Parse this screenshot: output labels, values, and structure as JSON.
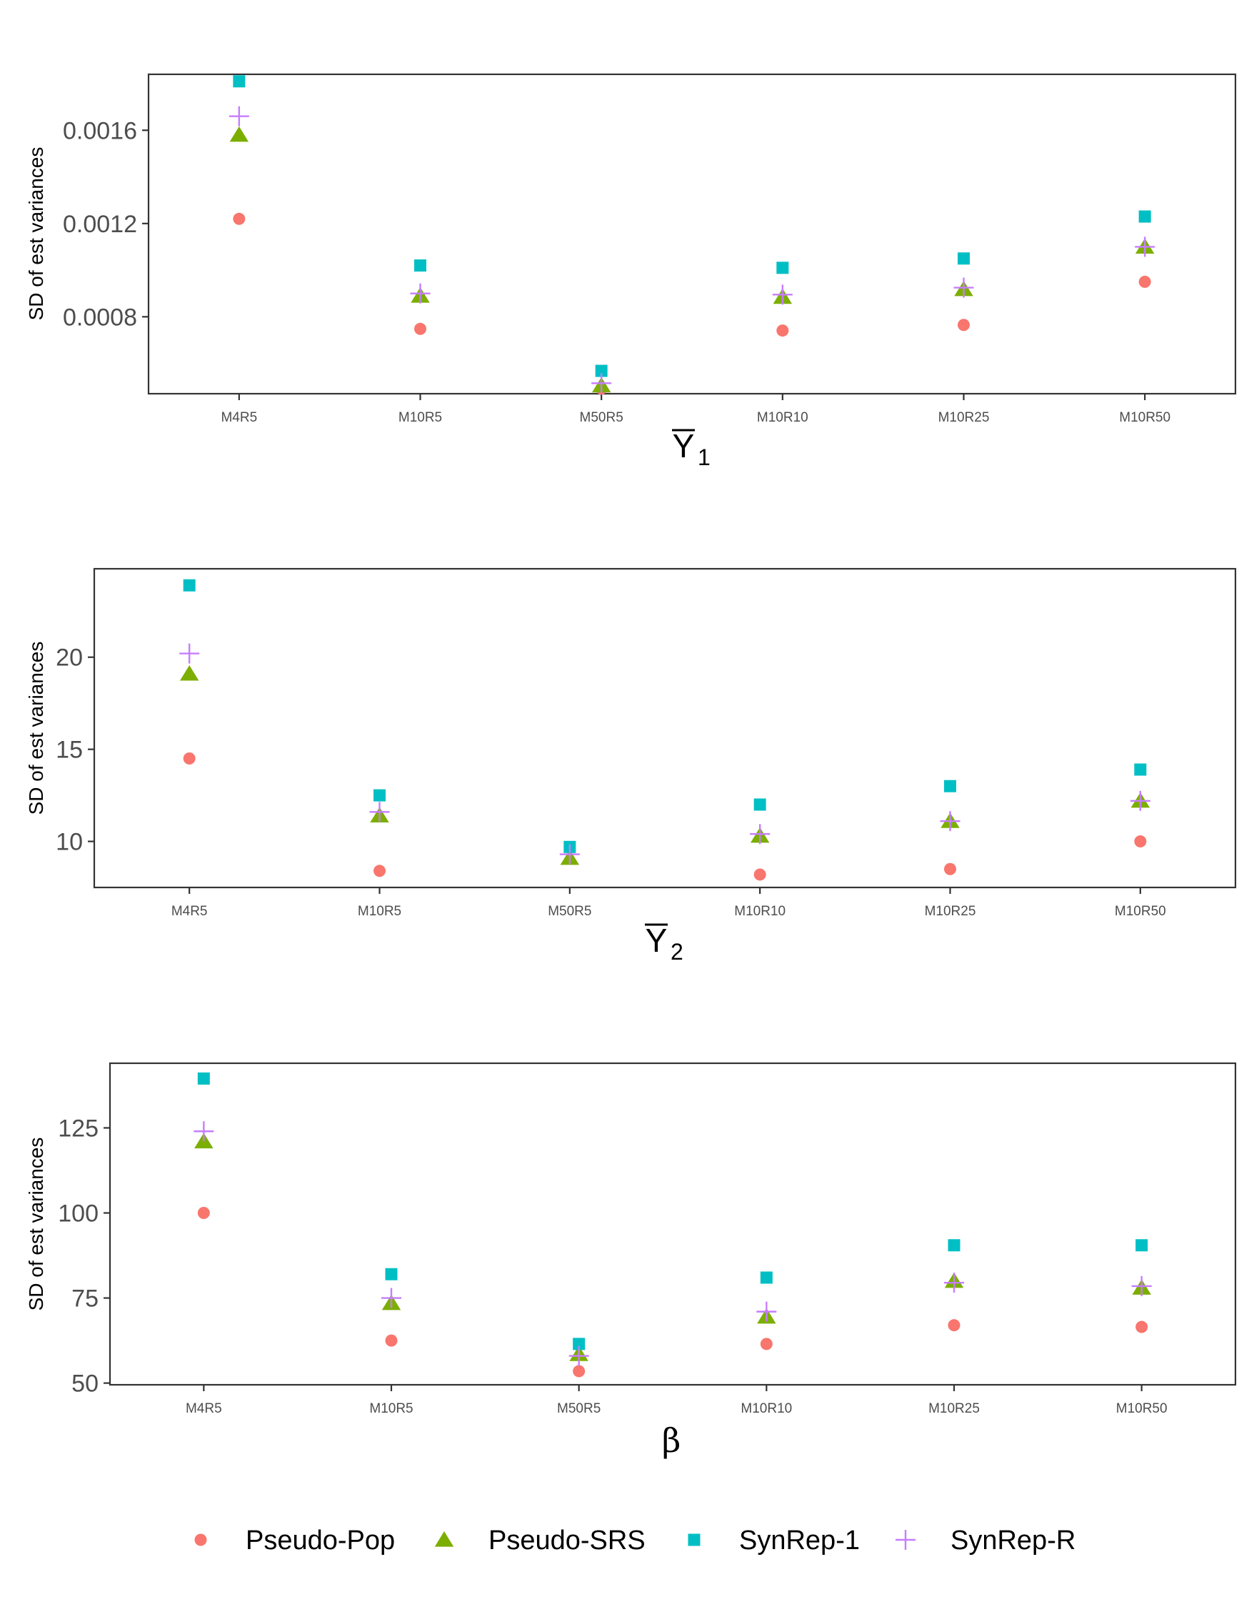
{
  "chart_data": [
    {
      "type": "scatter",
      "ylabel": "SD of est variances",
      "xlabel": "Y",
      "xlabel_overline": true,
      "xlabel_subscript": "1",
      "categories": [
        "M4R5",
        "M10R5",
        "M50R5",
        "M10R10",
        "M10R25",
        "M10R50"
      ],
      "ylim": [
        0.00047,
        0.00184
      ],
      "yticks": [
        0.0008,
        0.0012,
        0.0016
      ],
      "ytick_labels": [
        "0.0008",
        "0.0012",
        "0.0016"
      ],
      "series": [
        {
          "name": "Pseudo-Pop",
          "values": [
            0.00122,
            0.000748,
            0.000492,
            0.000741,
            0.000765,
            0.00095
          ]
        },
        {
          "name": "Pseudo-SRS",
          "values": [
            0.00158,
            0.00089,
            0.000505,
            0.000885,
            0.000918,
            0.0011
          ]
        },
        {
          "name": "SynRep-1",
          "values": [
            0.00181,
            0.00102,
            0.000568,
            0.00101,
            0.00105,
            0.00123
          ]
        },
        {
          "name": "SynRep-R",
          "values": [
            0.00166,
            0.0009,
            0.000515,
            0.000895,
            0.000925,
            0.0011
          ]
        }
      ]
    },
    {
      "type": "scatter",
      "ylabel": "SD of est variances",
      "xlabel": "Y",
      "xlabel_overline": true,
      "xlabel_subscript": "2",
      "categories": [
        "M4R5",
        "M10R5",
        "M50R5",
        "M10R10",
        "M10R25",
        "M10R50"
      ],
      "ylim": [
        7.5,
        24.8
      ],
      "yticks": [
        10,
        15,
        20
      ],
      "ytick_labels": [
        "10",
        "15",
        "20"
      ],
      "series": [
        {
          "name": "Pseudo-Pop",
          "values": [
            14.5,
            8.4,
            null,
            8.2,
            8.5,
            10.0
          ]
        },
        {
          "name": "Pseudo-SRS",
          "values": [
            19.1,
            11.4,
            9.1,
            10.3,
            11.1,
            12.2
          ]
        },
        {
          "name": "SynRep-1",
          "values": [
            23.9,
            12.5,
            9.7,
            12.0,
            13.0,
            13.9
          ]
        },
        {
          "name": "SynRep-R",
          "values": [
            20.2,
            11.6,
            9.3,
            10.4,
            11.1,
            12.2
          ]
        }
      ]
    },
    {
      "type": "scatter",
      "ylabel": "SD of est variances",
      "xlabel": "β",
      "categories": [
        "M4R5",
        "M10R5",
        "M50R5",
        "M10R10",
        "M10R25",
        "M10R50"
      ],
      "ylim": [
        49.5,
        144
      ],
      "yticks": [
        50,
        75,
        100,
        125
      ],
      "ytick_labels": [
        "50",
        "75",
        "100",
        "125"
      ],
      "series": [
        {
          "name": "Pseudo-Pop",
          "values": [
            100,
            62.5,
            53.5,
            61.5,
            67.0,
            66.5
          ]
        },
        {
          "name": "Pseudo-SRS",
          "values": [
            121,
            73.5,
            58.5,
            69.5,
            80.0,
            78.0
          ]
        },
        {
          "name": "SynRep-1",
          "values": [
            139.5,
            82.0,
            61.5,
            81.0,
            90.5,
            90.5
          ]
        },
        {
          "name": "SynRep-R",
          "values": [
            124,
            75.0,
            58.0,
            71.0,
            79.5,
            78.5
          ]
        }
      ]
    }
  ],
  "legend": {
    "position": "bottom",
    "items": [
      {
        "name": "Pseudo-Pop",
        "shape": "circle",
        "color": "#F8766D"
      },
      {
        "name": "Pseudo-SRS",
        "shape": "triangle",
        "color": "#7CAE00"
      },
      {
        "name": "SynRep-1",
        "shape": "square",
        "color": "#00BFC4"
      },
      {
        "name": "SynRep-R",
        "shape": "plus",
        "color": "#C77CFF"
      }
    ]
  },
  "colors": {
    "Pseudo-Pop": "#F8766D",
    "Pseudo-SRS": "#7CAE00",
    "SynRep-1": "#00BFC4",
    "SynRep-R": "#C77CFF"
  }
}
